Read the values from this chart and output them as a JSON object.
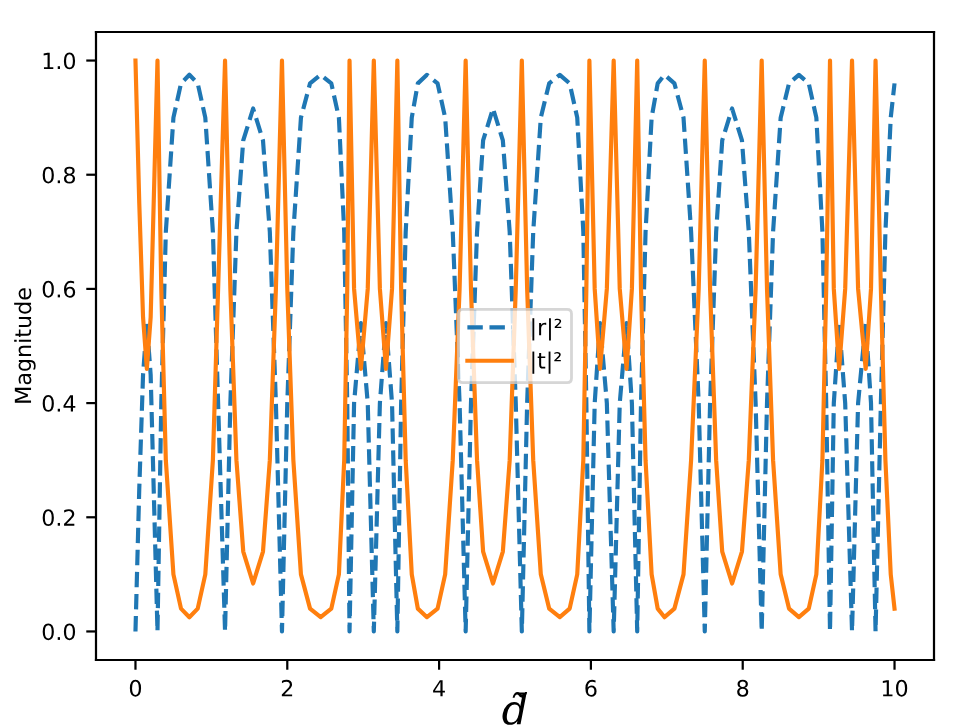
{
  "chart_data": {
    "type": "line",
    "xlabel": "d̃",
    "ylabel": "Magnitude",
    "x": [
      0.0,
      0.05,
      0.1,
      0.15,
      0.2,
      0.25,
      0.29,
      0.34,
      0.4,
      0.5,
      0.6,
      0.71,
      0.82,
      0.92,
      1.02,
      1.1,
      1.18,
      1.25,
      1.33,
      1.42,
      1.55,
      1.68,
      1.77,
      1.85,
      1.93,
      2.0,
      2.08,
      2.18,
      2.3,
      2.44,
      2.58,
      2.68,
      2.75,
      2.79,
      2.82,
      2.88,
      2.97,
      3.06,
      3.14,
      3.22,
      3.3,
      3.38,
      3.45,
      3.5,
      3.56,
      3.64,
      3.72,
      3.84,
      3.98,
      4.08,
      4.18,
      4.27,
      4.35,
      4.42,
      4.5,
      4.58,
      4.71,
      4.84,
      4.93,
      5.01,
      5.09,
      5.16,
      5.24,
      5.34,
      5.45,
      5.59,
      5.72,
      5.82,
      5.9,
      5.94,
      5.98,
      6.05,
      6.12,
      6.21,
      6.3,
      6.38,
      6.47,
      6.54,
      6.61,
      6.66,
      6.72,
      6.8,
      6.88,
      6.97,
      7.1,
      7.22,
      7.32,
      7.42,
      7.5,
      7.57,
      7.65,
      7.73,
      7.86,
      7.99,
      8.08,
      8.17,
      8.25,
      8.32,
      8.4,
      8.5,
      8.61,
      8.74,
      8.87,
      8.97,
      9.05,
      9.1,
      9.15,
      9.2,
      9.27,
      9.35,
      9.44,
      9.52,
      9.62,
      9.69,
      9.75,
      9.82,
      9.88,
      9.95,
      10.0
    ],
    "series": [
      {
        "name": "|r|²",
        "color": "#1f77b4",
        "line_style": "dashed",
        "values": [
          0.0,
          0.25,
          0.45,
          0.54,
          0.45,
          0.2,
          0.0,
          0.4,
          0.7,
          0.9,
          0.96,
          0.975,
          0.96,
          0.9,
          0.7,
          0.35,
          0.0,
          0.4,
          0.7,
          0.86,
          0.916,
          0.86,
          0.7,
          0.4,
          0.0,
          0.4,
          0.7,
          0.9,
          0.96,
          0.975,
          0.96,
          0.9,
          0.7,
          0.4,
          0.0,
          0.4,
          0.54,
          0.4,
          0.0,
          0.4,
          0.54,
          0.4,
          0.0,
          0.4,
          0.7,
          0.9,
          0.96,
          0.975,
          0.96,
          0.9,
          0.7,
          0.4,
          0.0,
          0.4,
          0.7,
          0.86,
          0.916,
          0.86,
          0.7,
          0.4,
          0.0,
          0.4,
          0.7,
          0.9,
          0.96,
          0.975,
          0.96,
          0.9,
          0.7,
          0.4,
          0.0,
          0.4,
          0.54,
          0.4,
          0.0,
          0.4,
          0.54,
          0.4,
          0.0,
          0.4,
          0.7,
          0.9,
          0.96,
          0.975,
          0.96,
          0.9,
          0.7,
          0.4,
          0.0,
          0.4,
          0.7,
          0.86,
          0.916,
          0.86,
          0.7,
          0.4,
          0.0,
          0.4,
          0.7,
          0.9,
          0.96,
          0.975,
          0.96,
          0.9,
          0.7,
          0.4,
          0.0,
          0.4,
          0.54,
          0.4,
          0.0,
          0.4,
          0.54,
          0.4,
          0.0,
          0.4,
          0.7,
          0.9,
          0.96
        ]
      },
      {
        "name": "|t|²",
        "color": "#ff7f0e",
        "line_style": "solid",
        "values": [
          1.0,
          0.75,
          0.55,
          0.46,
          0.55,
          0.8,
          1.0,
          0.6,
          0.3,
          0.1,
          0.04,
          0.025,
          0.04,
          0.1,
          0.3,
          0.65,
          1.0,
          0.6,
          0.3,
          0.14,
          0.084,
          0.14,
          0.3,
          0.6,
          1.0,
          0.6,
          0.3,
          0.1,
          0.04,
          0.025,
          0.04,
          0.1,
          0.3,
          0.6,
          1.0,
          0.6,
          0.46,
          0.6,
          1.0,
          0.6,
          0.46,
          0.6,
          1.0,
          0.6,
          0.3,
          0.1,
          0.04,
          0.025,
          0.04,
          0.1,
          0.3,
          0.6,
          1.0,
          0.6,
          0.3,
          0.14,
          0.084,
          0.14,
          0.3,
          0.6,
          1.0,
          0.6,
          0.3,
          0.1,
          0.04,
          0.025,
          0.04,
          0.1,
          0.3,
          0.6,
          1.0,
          0.6,
          0.46,
          0.6,
          1.0,
          0.6,
          0.46,
          0.6,
          1.0,
          0.6,
          0.3,
          0.1,
          0.04,
          0.025,
          0.04,
          0.1,
          0.3,
          0.6,
          1.0,
          0.6,
          0.3,
          0.14,
          0.084,
          0.14,
          0.3,
          0.6,
          1.0,
          0.6,
          0.3,
          0.1,
          0.04,
          0.025,
          0.04,
          0.1,
          0.3,
          0.6,
          1.0,
          0.6,
          0.46,
          0.6,
          1.0,
          0.6,
          0.46,
          0.6,
          1.0,
          0.6,
          0.3,
          0.1,
          0.04
        ]
      }
    ],
    "xlim": [
      -0.52,
      10.52
    ],
    "ylim": [
      -0.05,
      1.05
    ],
    "xticks": [
      0,
      2,
      4,
      6,
      8,
      10
    ],
    "yticks": [
      {
        "value": 0,
        "label": "0.0"
      },
      {
        "value": 0.2,
        "label": "0.2"
      },
      {
        "value": 0.4,
        "label": "0.4"
      },
      {
        "value": 0.6,
        "label": "0.6"
      },
      {
        "value": 0.8,
        "label": "0.8"
      },
      {
        "value": 1.0,
        "label": "1.0"
      }
    ],
    "legend": "center",
    "grid": false,
    "marker": "none"
  }
}
